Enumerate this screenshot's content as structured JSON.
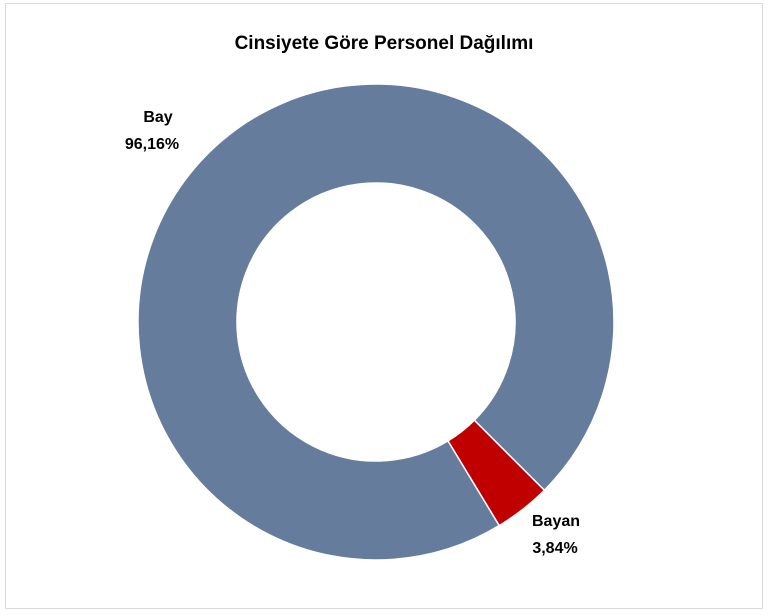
{
  "chart_data": {
    "type": "donut",
    "title": "Cinsiyete Göre Personel Dağılımı",
    "categories": [
      "Bay",
      "Bayan"
    ],
    "values": [
      96.16,
      3.84
    ],
    "value_labels": [
      "96,16%",
      "3,84%"
    ],
    "colors": [
      "#667c9d",
      "#c00000"
    ]
  }
}
